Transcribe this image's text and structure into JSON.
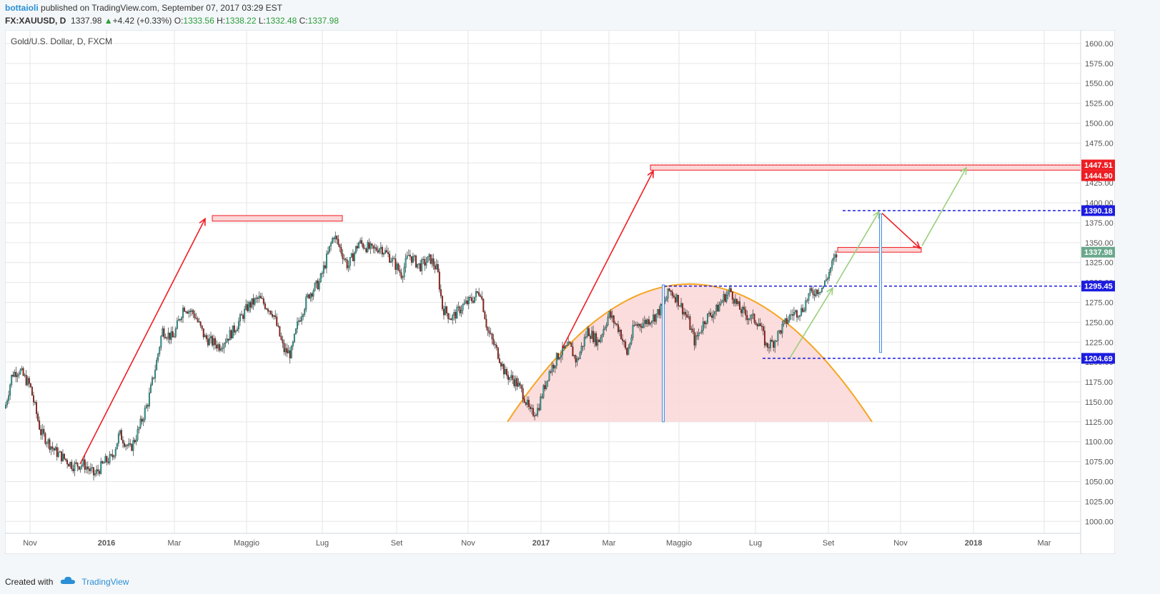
{
  "header": {
    "author": "bottaioli",
    "published": "published on TradingView.com, September 07, 2017 03:29 EST",
    "symbol": "FX:XAUUSD, D",
    "last": "1337.98",
    "change": "+4.42 (+0.33%)",
    "o_label": "O:",
    "o": "1333.56",
    "h_label": "H:",
    "h": "1338.22",
    "l_label": "L:",
    "l": "1332.48",
    "c_label": "C:",
    "c": "1337.98"
  },
  "footer": {
    "created": "Created with",
    "brand": "TradingView"
  },
  "colors": {
    "up": "#26a69a",
    "down": "#a31b12",
    "grid": "#e6e6e6",
    "red": "#ee1d23",
    "blue": "#1c1ce0",
    "orange": "#f5a623",
    "green_arrow": "#9ccf7d",
    "pink_fill": "#fbd7d7"
  },
  "chart_data": {
    "type": "candlestick",
    "title": "Gold/U.S. Dollar, D, FXCM",
    "ylim": [
      985,
      1617
    ],
    "y_ticks": [
      1000,
      1025,
      1050,
      1075,
      1100,
      1125,
      1150,
      1175,
      1200,
      1225,
      1250,
      1275,
      1300,
      1325,
      1350,
      1375,
      1400,
      1425,
      1450,
      1475,
      1500,
      1525,
      1550,
      1575,
      1600
    ],
    "y_tick_labels": [
      "1000.00",
      "1025.00",
      "1050.00",
      "1075.00",
      "1100.00",
      "1125.00",
      "1150.00",
      "1175.00",
      "1200.00",
      "1225.00",
      "1250.00",
      "1275.00",
      "1300.00",
      "1325.00",
      "1350.00",
      "1375.00",
      "1400.00",
      "1425.00",
      "1450.00",
      "1475.00",
      "1500.00",
      "1525.00",
      "1550.00",
      "1575.00",
      "1600.00"
    ],
    "x_ticks": [
      "Nov",
      "2016",
      "Mar",
      "Maggio",
      "Lug",
      "Set",
      "Nov",
      "2017",
      "Mar",
      "Maggio",
      "Lug",
      "Set",
      "Nov",
      "2018",
      "Mar"
    ],
    "price_tags": [
      {
        "label": "1447.51",
        "value": 1447.51,
        "color": "#ee1d23"
      },
      {
        "label": "1444.90",
        "value": 1444.9,
        "color": "#ee1d23"
      },
      {
        "label": "1390.18",
        "value": 1390.18,
        "color": "#1c1ce0"
      },
      {
        "label": "1337.98",
        "value": 1337.98,
        "color": "#6aa88c"
      },
      {
        "label": "1295.45",
        "value": 1295.45,
        "color": "#1c1ce0"
      },
      {
        "label": "1204.69",
        "value": 1204.69,
        "color": "#1c1ce0"
      }
    ],
    "path_points": [
      [
        0,
        1142
      ],
      [
        10,
        1185
      ],
      [
        20,
        1190
      ],
      [
        35,
        1170
      ],
      [
        50,
        1112
      ],
      [
        70,
        1088
      ],
      [
        95,
        1070
      ],
      [
        110,
        1072
      ],
      [
        125,
        1058
      ],
      [
        140,
        1075
      ],
      [
        150,
        1080
      ],
      [
        160,
        1110
      ],
      [
        175,
        1090
      ],
      [
        185,
        1110
      ],
      [
        200,
        1150
      ],
      [
        212,
        1200
      ],
      [
        220,
        1240
      ],
      [
        235,
        1230
      ],
      [
        250,
        1270
      ],
      [
        265,
        1260
      ],
      [
        280,
        1230
      ],
      [
        300,
        1220
      ],
      [
        320,
        1240
      ],
      [
        340,
        1270
      ],
      [
        355,
        1280
      ],
      [
        375,
        1262
      ],
      [
        390,
        1215
      ],
      [
        400,
        1210
      ],
      [
        410,
        1250
      ],
      [
        425,
        1285
      ],
      [
        440,
        1300
      ],
      [
        450,
        1330
      ],
      [
        460,
        1360
      ],
      [
        470,
        1340
      ],
      [
        480,
        1320
      ],
      [
        495,
        1350
      ],
      [
        505,
        1345
      ],
      [
        515,
        1340
      ],
      [
        525,
        1345
      ],
      [
        540,
        1330
      ],
      [
        555,
        1310
      ],
      [
        565,
        1335
      ],
      [
        580,
        1320
      ],
      [
        595,
        1330
      ],
      [
        605,
        1315
      ],
      [
        612,
        1268
      ],
      [
        625,
        1255
      ],
      [
        640,
        1270
      ],
      [
        655,
        1280
      ],
      [
        665,
        1290
      ],
      [
        675,
        1240
      ],
      [
        690,
        1210
      ],
      [
        700,
        1185
      ],
      [
        715,
        1175
      ],
      [
        725,
        1160
      ],
      [
        735,
        1135
      ],
      [
        745,
        1140
      ],
      [
        760,
        1185
      ],
      [
        775,
        1210
      ],
      [
        790,
        1220
      ],
      [
        800,
        1200
      ],
      [
        815,
        1240
      ],
      [
        830,
        1225
      ],
      [
        845,
        1260
      ],
      [
        860,
        1240
      ],
      [
        870,
        1210
      ],
      [
        880,
        1245
      ],
      [
        895,
        1250
      ],
      [
        910,
        1258
      ],
      [
        920,
        1270
      ],
      [
        930,
        1290
      ],
      [
        940,
        1280
      ],
      [
        955,
        1255
      ],
      [
        965,
        1225
      ],
      [
        980,
        1255
      ],
      [
        995,
        1265
      ],
      [
        1005,
        1280
      ],
      [
        1015,
        1290
      ],
      [
        1025,
        1270
      ],
      [
        1035,
        1260
      ],
      [
        1045,
        1255
      ],
      [
        1055,
        1250
      ],
      [
        1065,
        1220
      ],
      [
        1075,
        1225
      ],
      [
        1085,
        1240
      ],
      [
        1100,
        1260
      ],
      [
        1115,
        1265
      ],
      [
        1125,
        1285
      ],
      [
        1135,
        1290
      ],
      [
        1145,
        1295
      ],
      [
        1152,
        1310
      ],
      [
        1158,
        1325
      ],
      [
        1165,
        1337
      ]
    ]
  }
}
